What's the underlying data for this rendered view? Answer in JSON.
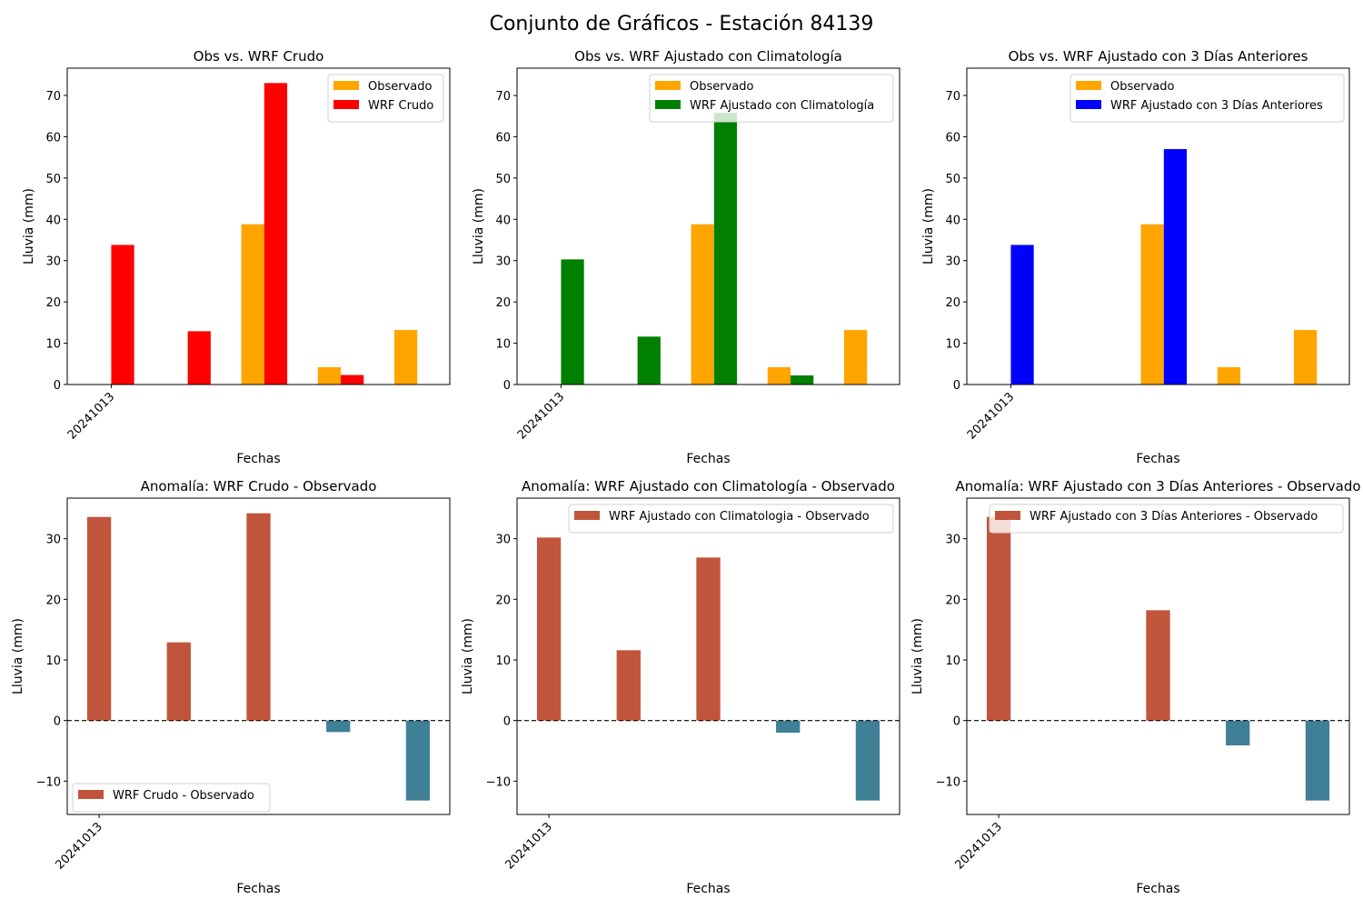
{
  "suptitle": "Conjunto de Gráficos - Estación 84139",
  "colors": {
    "observed": "#FFA500",
    "wrf_crudo": "#FF0000",
    "wrf_clim": "#008000",
    "wrf_3dias": "#0000FF",
    "anomaly_positive": "#C1553B",
    "anomaly_negative": "#3F8096",
    "zero_line": "#000000"
  },
  "chart_data": [
    {
      "type": "bar",
      "title": "Obs vs. WRF Crudo",
      "xlabel": "Fechas",
      "ylabel": "Lluvia (mm)",
      "x_tick_labels": [
        "20241013"
      ],
      "ylim": [
        0,
        76.6
      ],
      "yticks": [
        0,
        10,
        20,
        30,
        40,
        50,
        60,
        70
      ],
      "legend_position": "top-right",
      "series": [
        {
          "name": "Observado",
          "color_key": "observed",
          "values": [
            0.1,
            0,
            38.8,
            4.2,
            13.2
          ]
        },
        {
          "name": "WRF Crudo",
          "color_key": "wrf_crudo",
          "values": [
            33.8,
            12.9,
            73.0,
            2.3,
            0.1
          ]
        }
      ]
    },
    {
      "type": "bar",
      "title": "Obs vs. WRF Ajustado con Climatología",
      "xlabel": "Fechas",
      "ylabel": "Lluvia (mm)",
      "x_tick_labels": [
        "20241013"
      ],
      "ylim": [
        0,
        76.6
      ],
      "yticks": [
        0,
        10,
        20,
        30,
        40,
        50,
        60,
        70
      ],
      "legend_position": "top-right",
      "series": [
        {
          "name": "Observado",
          "color_key": "observed",
          "values": [
            0.1,
            0,
            38.8,
            4.2,
            13.2
          ]
        },
        {
          "name": "WRF Ajustado con Climatología",
          "color_key": "wrf_clim",
          "values": [
            30.3,
            11.6,
            65.8,
            2.2,
            0.1
          ]
        }
      ]
    },
    {
      "type": "bar",
      "title": "Obs vs. WRF Ajustado con 3 Días Anteriores",
      "xlabel": "Fechas",
      "ylabel": "Lluvia (mm)",
      "x_tick_labels": [
        "20241013"
      ],
      "ylim": [
        0,
        76.6
      ],
      "yticks": [
        0,
        10,
        20,
        30,
        40,
        50,
        60,
        70
      ],
      "legend_position": "top-right",
      "series": [
        {
          "name": "Observado",
          "color_key": "observed",
          "values": [
            0.1,
            0,
            38.8,
            4.2,
            13.2
          ]
        },
        {
          "name": "WRF Ajustado con 3 Días Anteriores",
          "color_key": "wrf_3dias",
          "values": [
            33.8,
            0,
            57.0,
            0,
            0
          ]
        }
      ]
    },
    {
      "type": "bar",
      "title": "Anomalía: WRF Crudo - Observado",
      "xlabel": "Fechas",
      "ylabel": "Lluvia (mm)",
      "x_tick_labels": [
        "20241013"
      ],
      "ylim": [
        -15.5,
        36.7
      ],
      "yticks": [
        -10,
        0,
        10,
        20,
        30
      ],
      "legend_position": "bottom-left",
      "zero_line": true,
      "series": [
        {
          "name": "WRF Crudo - Observado",
          "values": [
            33.6,
            12.9,
            34.2,
            -1.9,
            -13.2
          ]
        }
      ]
    },
    {
      "type": "bar",
      "title": "Anomalía: WRF Ajustado con Climatología - Observado",
      "xlabel": "Fechas",
      "ylabel": "Lluvia (mm)",
      "x_tick_labels": [
        "20241013"
      ],
      "ylim": [
        -15.5,
        36.7
      ],
      "yticks": [
        -10,
        0,
        10,
        20,
        30
      ],
      "legend_position": "top-right",
      "zero_line": true,
      "series": [
        {
          "name": "WRF Ajustado con Climatologia - Observado",
          "values": [
            30.2,
            11.6,
            26.9,
            -2.0,
            -13.2
          ]
        }
      ]
    },
    {
      "type": "bar",
      "title": "Anomalía: WRF Ajustado con 3 Días Anteriores - Observado",
      "xlabel": "Fechas",
      "ylabel": "Lluvia (mm)",
      "x_tick_labels": [
        "20241013"
      ],
      "ylim": [
        -15.5,
        36.7
      ],
      "yticks": [
        -10,
        0,
        10,
        20,
        30
      ],
      "legend_position": "top-right",
      "zero_line": true,
      "series": [
        {
          "name": "WRF Ajustado con 3 Días Anteriores - Observado",
          "values": [
            33.6,
            0,
            18.2,
            -4.1,
            -13.2
          ]
        }
      ]
    }
  ]
}
